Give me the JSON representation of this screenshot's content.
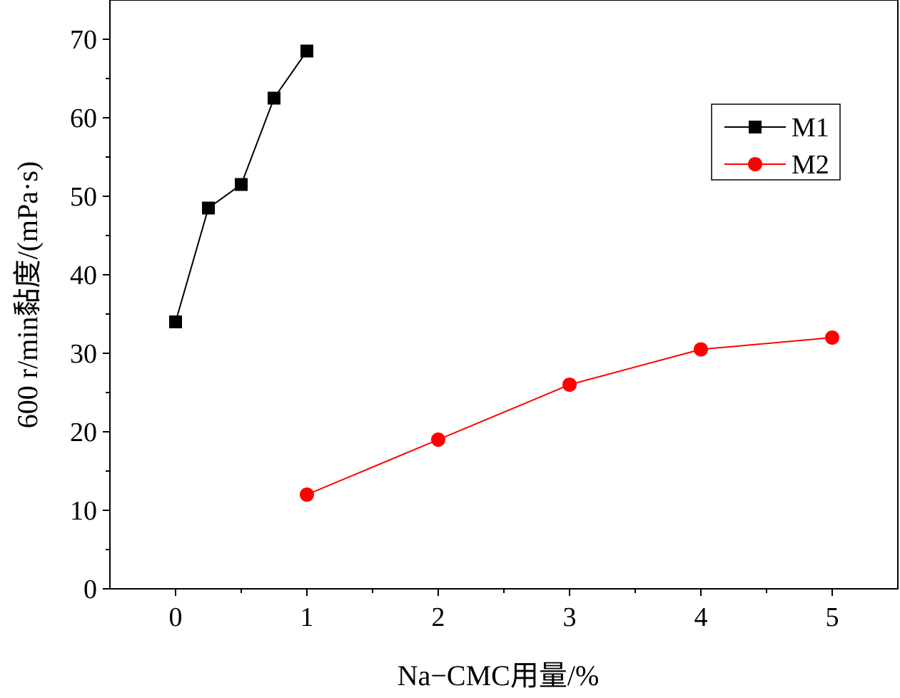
{
  "chart_data": {
    "type": "line",
    "xlabel": "Na−CMC用量/%",
    "ylabel": "600 r/min黏度/(mPa·s)",
    "xlim": [
      -0.5,
      5.5
    ],
    "ylim": [
      0,
      75
    ],
    "x_ticks": [
      0,
      1,
      2,
      3,
      4,
      5
    ],
    "x_tick_labels": [
      "0",
      "1",
      "2",
      "3",
      "4",
      "5"
    ],
    "y_ticks": [
      0,
      10,
      20,
      30,
      40,
      50,
      60,
      70
    ],
    "y_tick_labels": [
      "0",
      "10",
      "20",
      "30",
      "40",
      "50",
      "60",
      "70"
    ],
    "grid": false,
    "legend_position": "upper-right",
    "series": [
      {
        "name": "M1",
        "color": "#000000",
        "marker": "square",
        "x": [
          0,
          0.25,
          0.5,
          0.75,
          1
        ],
        "y": [
          34,
          48.5,
          51.5,
          62.5,
          68.5
        ]
      },
      {
        "name": "M2",
        "color": "#ff0000",
        "marker": "circle",
        "x": [
          1,
          2,
          3,
          4,
          5
        ],
        "y": [
          12,
          19,
          26,
          30.5,
          32
        ]
      }
    ]
  }
}
